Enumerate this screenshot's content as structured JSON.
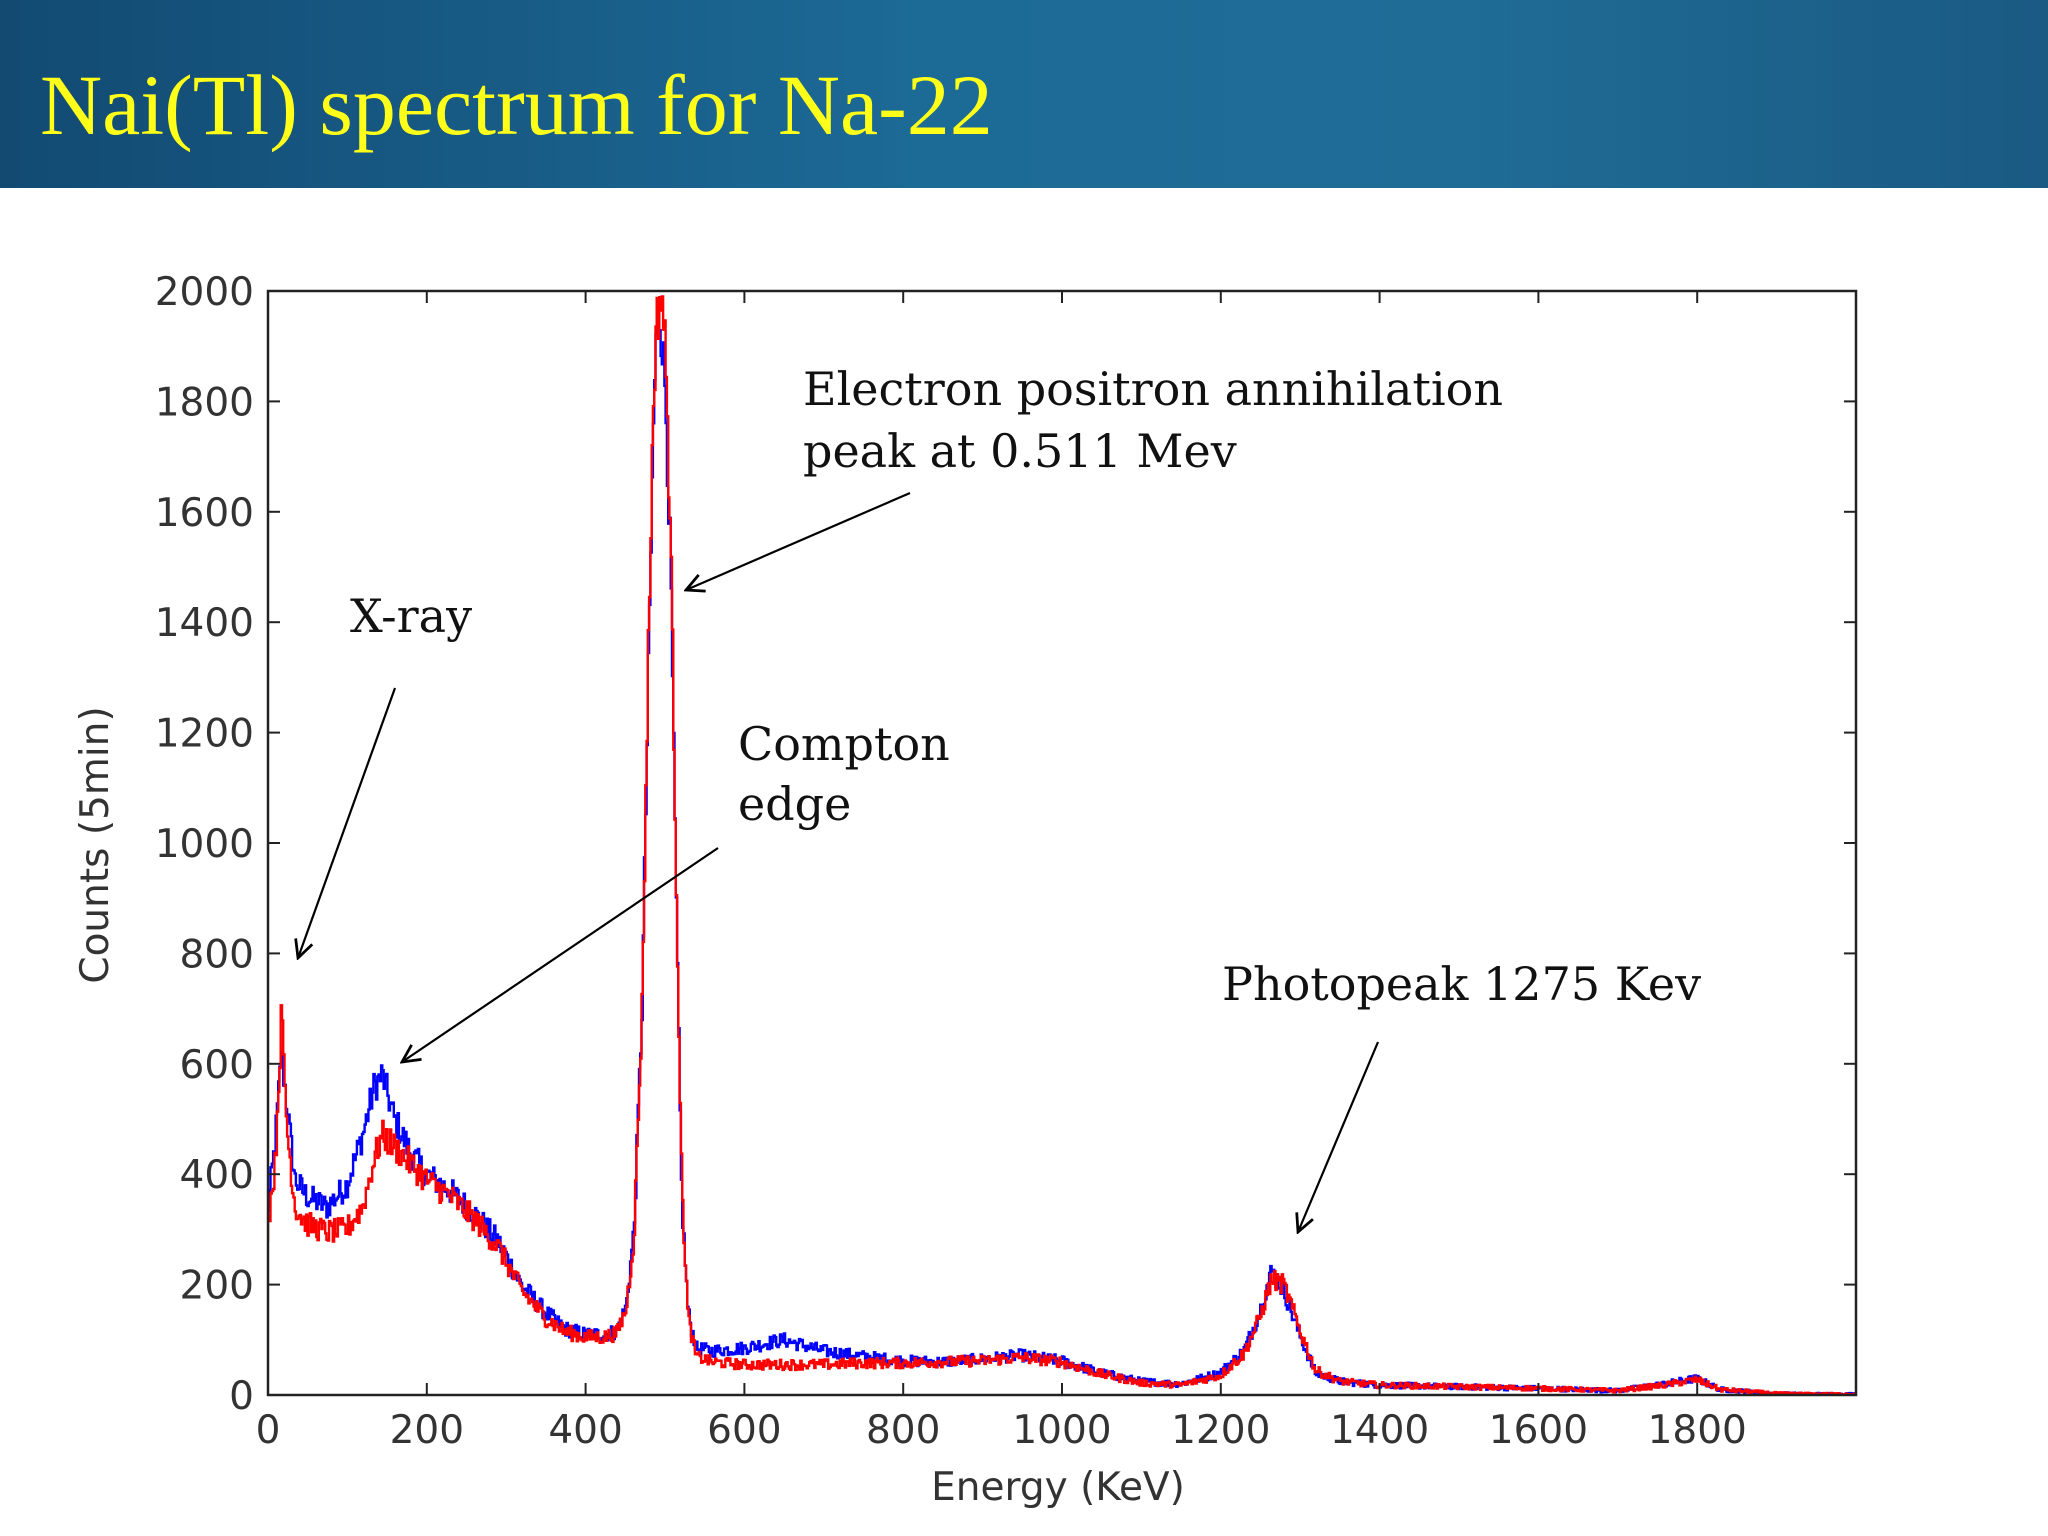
{
  "slide": {
    "title": "Nai(Tl) spectrum for Na-22"
  },
  "colors": {
    "header": "#1c6a96",
    "title": "#ffff1a",
    "series_blue": "#0000ff",
    "series_red": "#ff0000"
  },
  "chart_data": {
    "type": "line",
    "title": "",
    "xlabel": "Energy (KeV)",
    "ylabel": "Counts (5min)",
    "xlim": [
      0,
      2000
    ],
    "ylim": [
      0,
      2000
    ],
    "xticks": [
      0,
      200,
      400,
      600,
      800,
      1000,
      1200,
      1400,
      1600,
      1800
    ],
    "yticks": [
      0,
      200,
      400,
      600,
      800,
      1000,
      1200,
      1400,
      1600,
      1800,
      2000
    ],
    "grid": false,
    "series": [
      {
        "color": "#0000ff",
        "x": [
          0,
          10,
          18,
          25,
          35,
          50,
          75,
          100,
          120,
          135,
          145,
          160,
          180,
          200,
          230,
          260,
          290,
          320,
          350,
          375,
          400,
          425,
          440,
          452,
          462,
          472,
          480,
          487,
          492,
          497,
          502,
          508,
          515,
          522,
          530,
          540,
          560,
          600,
          650,
          700,
          750,
          800,
          850,
          900,
          950,
          1000,
          1050,
          1100,
          1150,
          1200,
          1230,
          1250,
          1265,
          1280,
          1300,
          1320,
          1350,
          1400,
          1500,
          1600,
          1700,
          1760,
          1800,
          1830,
          1870,
          1900,
          1950,
          2000
        ],
        "y": [
          320,
          460,
          620,
          520,
          390,
          360,
          340,
          380,
          470,
          560,
          580,
          500,
          440,
          400,
          370,
          330,
          280,
          200,
          150,
          120,
          110,
          110,
          115,
          160,
          300,
          700,
          1300,
          1800,
          1990,
          1920,
          1800,
          1500,
          900,
          350,
          150,
          85,
          80,
          85,
          100,
          80,
          70,
          62,
          60,
          65,
          72,
          62,
          40,
          25,
          20,
          40,
          80,
          150,
          225,
          190,
          110,
          40,
          25,
          18,
          15,
          12,
          8,
          20,
          30,
          10,
          6,
          3,
          2,
          2
        ]
      },
      {
        "color": "#ff0000",
        "x": [
          0,
          10,
          18,
          25,
          35,
          50,
          75,
          100,
          120,
          135,
          145,
          160,
          180,
          200,
          230,
          260,
          290,
          320,
          350,
          375,
          400,
          425,
          440,
          452,
          462,
          472,
          480,
          487,
          492,
          497,
          502,
          508,
          515,
          522,
          530,
          540,
          560,
          600,
          650,
          700,
          750,
          800,
          850,
          900,
          950,
          1000,
          1050,
          1100,
          1150,
          1200,
          1230,
          1250,
          1265,
          1280,
          1300,
          1320,
          1350,
          1400,
          1500,
          1600,
          1700,
          1760,
          1800,
          1830,
          1870,
          1900,
          1950,
          2000
        ],
        "y": [
          300,
          420,
          690,
          480,
          340,
          310,
          295,
          300,
          340,
          430,
          470,
          450,
          420,
          390,
          360,
          320,
          270,
          190,
          140,
          115,
          105,
          105,
          112,
          155,
          290,
          700,
          1350,
          1850,
          1960,
          2000,
          1870,
          1550,
          950,
          380,
          140,
          70,
          60,
          55,
          55,
          55,
          58,
          58,
          60,
          62,
          68,
          60,
          38,
          22,
          18,
          35,
          75,
          140,
          210,
          200,
          120,
          45,
          25,
          18,
          15,
          12,
          8,
          18,
          28,
          10,
          6,
          3,
          2,
          2
        ]
      }
    ],
    "annotations": [
      {
        "text": "X-ray"
      },
      {
        "text": "Compton"
      },
      {
        "text": "edge"
      },
      {
        "text": "Electron positron annihilation"
      },
      {
        "text": "peak at 0.511 Mev"
      },
      {
        "text": "Photopeak 1275 Kev"
      }
    ]
  }
}
